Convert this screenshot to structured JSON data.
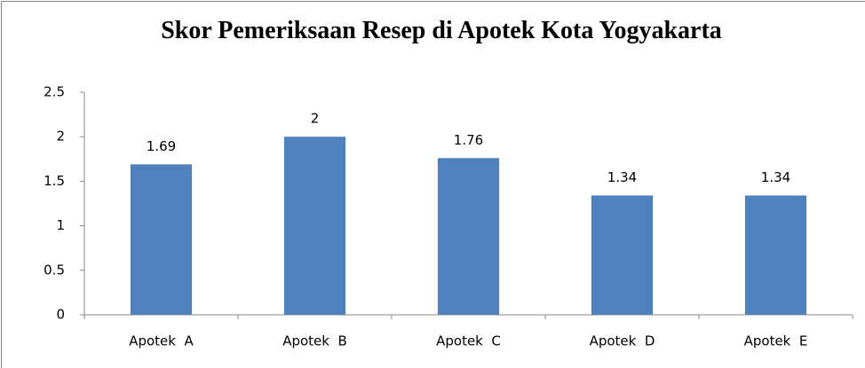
{
  "chart_data": {
    "type": "bar",
    "title": "Skor Pemeriksaan Resep di Apotek Kota Yogyakarta",
    "categories": [
      "Apotek  A",
      "Apotek  B",
      "Apotek  C",
      "Apotek  D",
      "Apotek  E"
    ],
    "values": [
      1.69,
      2,
      1.76,
      1.34,
      1.34
    ],
    "color": "#4f81bd",
    "ylim": [
      0,
      2.5
    ],
    "yticks": [
      0,
      0.5,
      1,
      1.5,
      2,
      2.5
    ],
    "grid": false
  }
}
